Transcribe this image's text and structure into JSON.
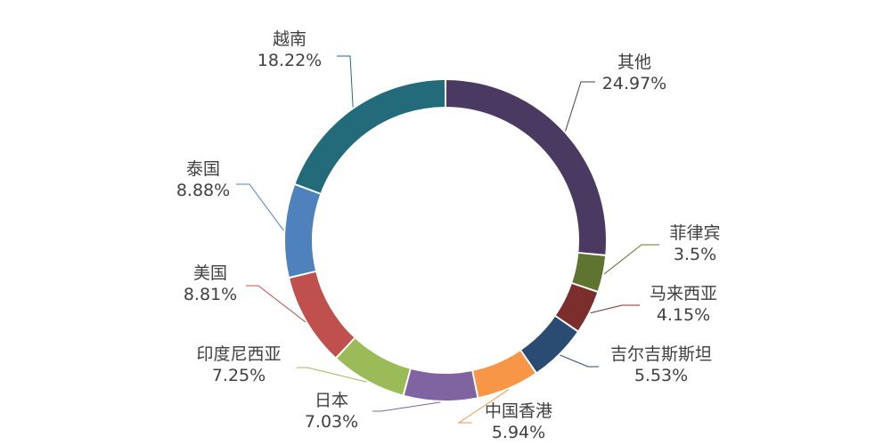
{
  "chart_data": {
    "type": "pie",
    "variant": "donut",
    "categories": [
      "其他",
      "菲律宾",
      "马来西亚",
      "吉尔吉斯斯坦",
      "中国香港",
      "日本",
      "印度尼西亚",
      "美国",
      "泰国",
      "越南"
    ],
    "values": [
      24.97,
      3.5,
      4.15,
      5.53,
      5.94,
      7.03,
      7.25,
      8.81,
      8.88,
      18.22
    ],
    "value_labels": [
      "24.97%",
      "3.5%",
      "4.15%",
      "5.53%",
      "5.94%",
      "7.03%",
      "7.25%",
      "8.81%",
      "8.88%",
      "18.22%"
    ],
    "colors": [
      "#4A3A62",
      "#5E7430",
      "#7B2E2C",
      "#2A4B72",
      "#F79646",
      "#8064A2",
      "#9BBB59",
      "#C0504D",
      "#4F81BD",
      "#236B7B"
    ],
    "start_angle": "top",
    "direction": "clockwise",
    "legend": "none"
  }
}
